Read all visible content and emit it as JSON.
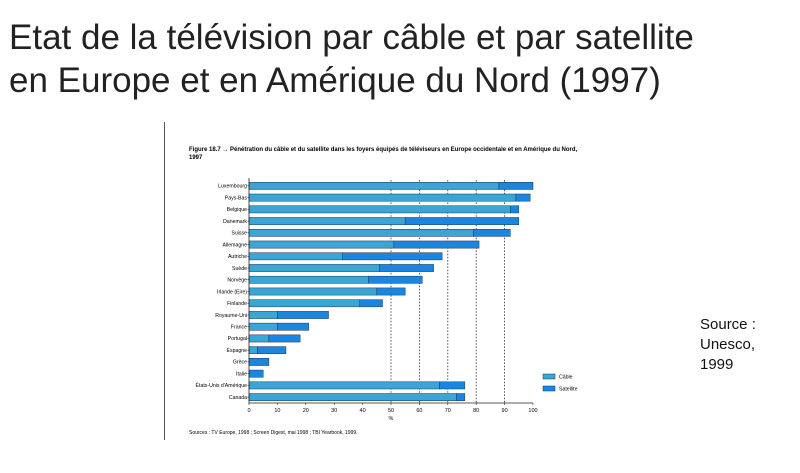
{
  "slide": {
    "title": "Etat de la télévision par câble et par satellite\nen Europe et en Amérique du Nord (1997)",
    "source_note": "Source :\nUnesco,\n1999"
  },
  "figure": {
    "caption": "Figure 18.7 → Pénétration du câble et du satellite dans les foyers équipés de téléviseurs en Europe occidentale et en Amérique du Nord, 1997",
    "sources": "Sources : TV Europe, 1998 ; Screen Digest, mai 1998 ; TBI Yearbook, 1999."
  },
  "colors": {
    "cable": "#39a6d6",
    "satellite": "#1b86e0",
    "bar_stroke": "#1d3550",
    "axis": "#222222",
    "gridline": "#333333"
  },
  "chart_data": {
    "type": "bar",
    "orientation": "horizontal",
    "stacked": true,
    "categories": [
      "Luxembourg",
      "Pays-Bas",
      "Belgique",
      "Danemark",
      "Suisse",
      "Allemagne",
      "Autriche",
      "Suède",
      "Norvège",
      "Irlande (Eire)",
      "Finlande",
      "Royaume-Uni",
      "France",
      "Portugal",
      "Espagne",
      "Grèce",
      "Italie",
      "États-Unis d'Amérique",
      "Canada"
    ],
    "series": [
      {
        "name": "Câble",
        "values": [
          88,
          94,
          92,
          55,
          79,
          51,
          33,
          46,
          42,
          45,
          39,
          10,
          10,
          7,
          3,
          0,
          0,
          67,
          73
        ]
      },
      {
        "name": "Satellite",
        "values": [
          12,
          5,
          3,
          40,
          13,
          30,
          35,
          19,
          19,
          10,
          8,
          18,
          11,
          11,
          10,
          7,
          5,
          9,
          3
        ]
      }
    ],
    "xlabel": "%",
    "xlim": [
      0,
      100
    ],
    "xticks": [
      0,
      10,
      20,
      30,
      40,
      50,
      60,
      70,
      80,
      90,
      100
    ],
    "dashed_gridlines": [
      50,
      60,
      70,
      80,
      90
    ],
    "legend_position": "bottom-right"
  }
}
